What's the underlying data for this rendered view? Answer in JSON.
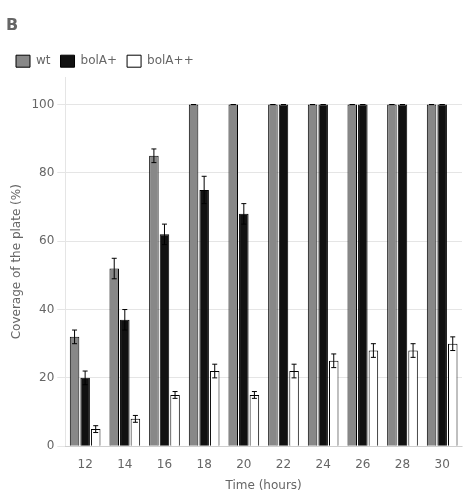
{
  "chart_data": {
    "type": "bar",
    "title": "B",
    "categories": [
      12,
      14,
      16,
      18,
      20,
      22,
      24,
      26,
      28,
      30
    ],
    "series": [
      {
        "name": "wt",
        "color": "#888888",
        "values": [
          32,
          52,
          85,
          100,
          100,
          100,
          100,
          100,
          100,
          100
        ],
        "errors": [
          2,
          3,
          2,
          0,
          0,
          0,
          0,
          0,
          0,
          0
        ]
      },
      {
        "name": "bolA+",
        "color": "#111111",
        "values": [
          20,
          37,
          62,
          75,
          68,
          100,
          100,
          100,
          100,
          100
        ],
        "errors": [
          2,
          3,
          3,
          4,
          3,
          0,
          0,
          0,
          0,
          0
        ]
      },
      {
        "name": "bolA++",
        "color": "#ffffff",
        "values": [
          5,
          8,
          15,
          22,
          15,
          22,
          25,
          28,
          28,
          30
        ],
        "errors": [
          1,
          1,
          1,
          2,
          1,
          2,
          2,
          2,
          2,
          2
        ]
      }
    ],
    "xlabel": "Time (hours)",
    "ylabel": "Coverage of the plate (%)",
    "ylim": [
      0,
      108
    ],
    "yticks": [
      0,
      20,
      40,
      60,
      80,
      100
    ],
    "grid": true,
    "legend": "upper left"
  }
}
